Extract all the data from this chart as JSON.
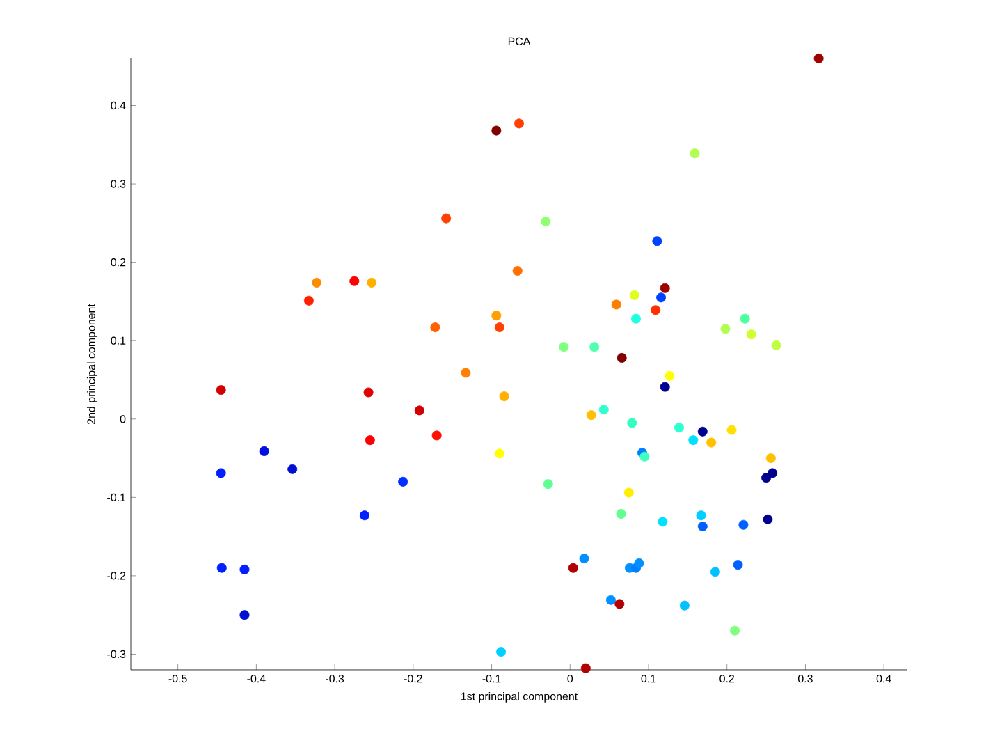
{
  "chart_data": {
    "type": "scatter",
    "title": "PCA",
    "xlabel": "1st principal component",
    "ylabel": "2nd principal component",
    "xlim": [
      -0.56,
      0.43
    ],
    "ylim": [
      -0.32,
      0.46
    ],
    "xticks": [
      -0.5,
      -0.4,
      -0.3,
      -0.2,
      -0.1,
      0,
      0.1,
      0.2,
      0.3,
      0.4
    ],
    "yticks": [
      -0.3,
      -0.2,
      -0.1,
      0,
      0.1,
      0.2,
      0.3,
      0.4
    ],
    "marker": "circle",
    "x": [
      0.317,
      -0.094,
      -0.065,
      -0.158,
      -0.067,
      -0.323,
      -0.275,
      -0.253,
      -0.333,
      -0.094,
      -0.172,
      -0.09,
      -0.133,
      0.159,
      -0.031,
      0.111,
      0.121,
      0.082,
      0.116,
      0.059,
      0.109,
      0.084,
      0.223,
      0.198,
      0.231,
      0.263,
      -0.008,
      0.031,
      0.066,
      0.127,
      -0.445,
      -0.257,
      -0.084,
      -0.192,
      -0.17,
      -0.255,
      -0.09,
      -0.39,
      -0.445,
      -0.354,
      -0.213,
      -0.262,
      -0.444,
      -0.415,
      -0.415,
      -0.088,
      0.121,
      0.043,
      0.027,
      0.079,
      0.139,
      0.169,
      0.206,
      0.157,
      0.18,
      0.092,
      0.095,
      0.256,
      0.258,
      0.25,
      -0.028,
      0.075,
      0.065,
      0.167,
      0.118,
      0.169,
      0.221,
      0.252,
      0.018,
      0.004,
      0.076,
      0.084,
      0.088,
      0.185,
      0.214,
      0.052,
      0.063,
      0.146,
      0.21,
      0.02
    ],
    "values": [
      0.46,
      0.368,
      0.377,
      0.256,
      0.189,
      0.174,
      0.176,
      0.174,
      0.151,
      0.132,
      0.117,
      0.117,
      0.059,
      0.339,
      0.252,
      0.227,
      0.167,
      0.158,
      0.155,
      0.146,
      0.139,
      0.128,
      0.128,
      0.115,
      0.108,
      0.094,
      0.092,
      0.092,
      0.078,
      0.055,
      0.037,
      0.034,
      0.029,
      0.011,
      -0.021,
      -0.027,
      -0.044,
      -0.041,
      -0.069,
      -0.064,
      -0.08,
      -0.123,
      -0.19,
      -0.192,
      -0.25,
      -0.297,
      0.041,
      0.012,
      0.005,
      -0.005,
      -0.011,
      -0.016,
      -0.014,
      -0.027,
      -0.03,
      -0.043,
      -0.048,
      -0.05,
      -0.069,
      -0.075,
      -0.083,
      -0.094,
      -0.121,
      -0.123,
      -0.131,
      -0.137,
      -0.135,
      -0.128,
      -0.178,
      -0.19,
      -0.19,
      -0.19,
      -0.184,
      -0.195,
      -0.186,
      -0.231,
      -0.236,
      -0.238,
      -0.27,
      -0.318
    ],
    "colors": [
      "#a00000",
      "#800000",
      "#ff4000",
      "#ff4000",
      "#ff7000",
      "#ff8c00",
      "#ff0000",
      "#ffb000",
      "#ff2000",
      "#ffa000",
      "#ff6000",
      "#ff4000",
      "#ff8000",
      "#b0ff50",
      "#90ff70",
      "#0040ff",
      "#a00000",
      "#e0ff20",
      "#0040ff",
      "#ff8000",
      "#ff3000",
      "#20ffe0",
      "#50ffa0",
      "#b0ff50",
      "#d0ff30",
      "#c0ff40",
      "#80ff80",
      "#50ffb0",
      "#800000",
      "#ffff00",
      "#d00000",
      "#e00000",
      "#ffb000",
      "#d00000",
      "#ff1000",
      "#ff0000",
      "#ffff00",
      "#0010e0",
      "#0020ff",
      "#0010d0",
      "#0030ff",
      "#0020ff",
      "#0020ff",
      "#0020ff",
      "#0010d0",
      "#00d0ff",
      "#000090",
      "#30ffd0",
      "#ffc000",
      "#30ffc0",
      "#30ffd0",
      "#000090",
      "#ffe000",
      "#00e0ff",
      "#ffc000",
      "#0080ff",
      "#40ffc0",
      "#ffc000",
      "#000090",
      "#000090",
      "#60ff90",
      "#ffee00",
      "#60ff90",
      "#00d0ff",
      "#00e0ff",
      "#0060ff",
      "#0060ff",
      "#000090",
      "#0090ff",
      "#b00000",
      "#0090ff",
      "#0080ff",
      "#0090ff",
      "#00c0ff",
      "#0060ff",
      "#0090ff",
      "#b00000",
      "#00c0ff",
      "#80ff80",
      "#b00000"
    ]
  }
}
